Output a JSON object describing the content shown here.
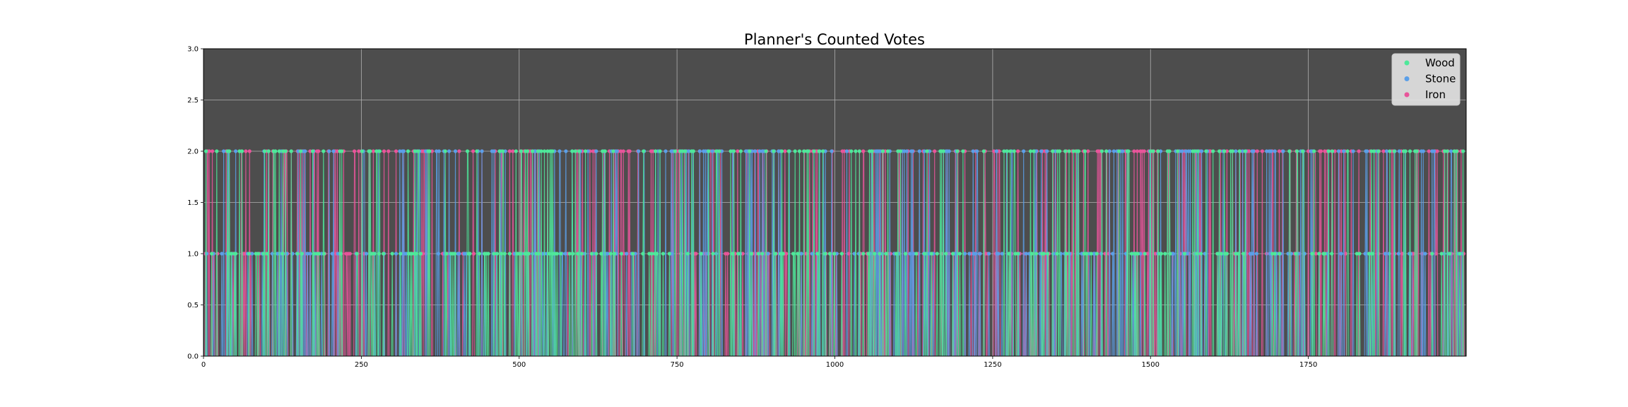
{
  "chart_data": {
    "type": "line",
    "title": "Planner's Counted Votes",
    "xlabel": "",
    "ylabel": "",
    "xlim": [
      0,
      2000
    ],
    "ylim": [
      0,
      3.0
    ],
    "x_ticks": [
      0,
      250,
      500,
      750,
      1000,
      1250,
      1500,
      1750
    ],
    "y_ticks": [
      "0.0",
      "0.5",
      "1.0",
      "1.5",
      "2.0",
      "2.5",
      "3.0"
    ],
    "grid": true,
    "legend_position": "top-right",
    "background_color": "#4d4d4d",
    "series": [
      {
        "name": "Wood",
        "color": "#4ee89a",
        "values_range": [
          0,
          2
        ]
      },
      {
        "name": "Stone",
        "color": "#5b9fe8",
        "values_range": [
          0,
          2
        ]
      },
      {
        "name": "Iron",
        "color": "#e8559a",
        "values_range": [
          0,
          2
        ]
      }
    ],
    "series_x_range": [
      0,
      1999
    ],
    "note_values": "Each series is a per-step count of 0, 1 or 2 over ~2000 steps"
  }
}
